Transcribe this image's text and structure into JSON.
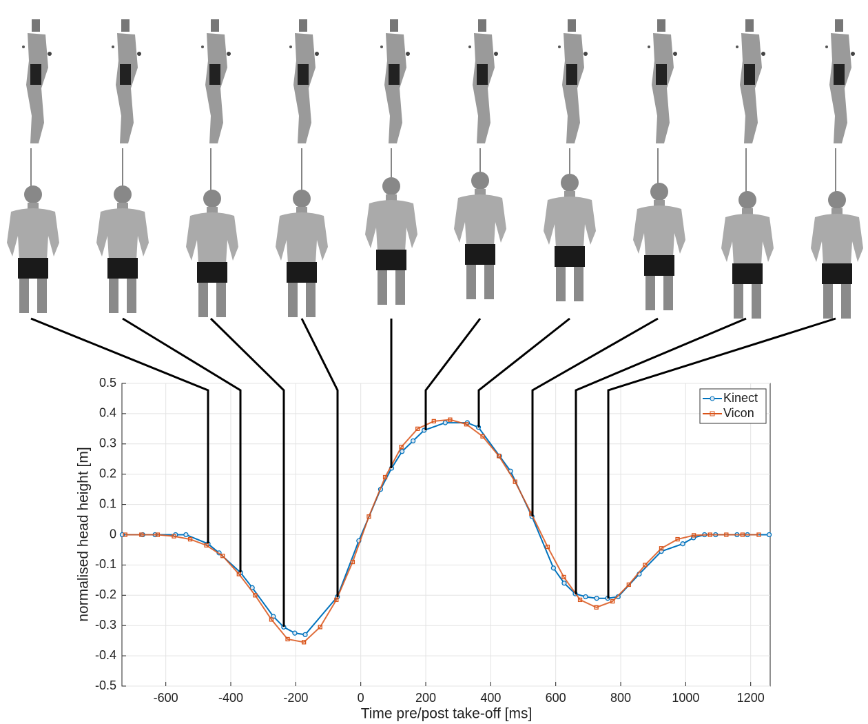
{
  "chart_data": {
    "type": "line",
    "xlabel": "Time pre/post take-off [ms]",
    "ylabel": "normalised head height [m]",
    "xlim": [
      -735,
      1260
    ],
    "ylim": [
      -0.5,
      0.5
    ],
    "xticks": [
      -600,
      -400,
      -200,
      0,
      200,
      400,
      600,
      800,
      1000,
      1200
    ],
    "yticks": [
      -0.5,
      -0.4,
      -0.3,
      -0.2,
      -0.1,
      0,
      0.1,
      0.2,
      0.3,
      0.4,
      0.5
    ],
    "grid": true,
    "legend": "upper right",
    "series": [
      {
        "name": "Kinect",
        "color": "#0072bd",
        "marker": "circle",
        "x": [
          -734,
          -671,
          -633,
          -570,
          -538,
          -470,
          -436,
          -370,
          -334,
          -269,
          -237,
          -203,
          -171,
          -72,
          -6,
          61,
          95,
          127,
          161,
          195,
          260,
          328,
          362,
          427,
          461,
          527,
          593,
          626,
          660,
          692,
          726,
          760,
          792,
          857,
          925,
          991,
          1024,
          1058,
          1092,
          1158,
          1190,
          1257
        ],
        "values": [
          0,
          0,
          0,
          0,
          0,
          -0.03,
          -0.06,
          -0.125,
          -0.175,
          -0.27,
          -0.305,
          -0.325,
          -0.33,
          -0.205,
          -0.02,
          0.15,
          0.22,
          0.275,
          0.31,
          0.345,
          0.37,
          0.37,
          0.355,
          0.26,
          0.21,
          0.06,
          -0.11,
          -0.16,
          -0.195,
          -0.205,
          -0.21,
          -0.21,
          -0.205,
          -0.13,
          -0.055,
          -0.03,
          -0.01,
          0,
          0,
          0,
          0,
          0
        ]
      },
      {
        "name": "Vicon",
        "color": "#d95319",
        "marker": "square",
        "x": [
          -725,
          -675,
          -625,
          -575,
          -525,
          -475,
          -425,
          -375,
          -325,
          -275,
          -225,
          -175,
          -125,
          -75,
          -25,
          25,
          75,
          125,
          175,
          225,
          275,
          325,
          375,
          425,
          475,
          525,
          575,
          625,
          675,
          725,
          775,
          825,
          875,
          925,
          975,
          1025,
          1075,
          1125,
          1175,
          1225
        ],
        "values": [
          0,
          0,
          0,
          -0.005,
          -0.015,
          -0.035,
          -0.07,
          -0.13,
          -0.2,
          -0.28,
          -0.345,
          -0.355,
          -0.305,
          -0.215,
          -0.09,
          0.06,
          0.19,
          0.29,
          0.35,
          0.375,
          0.38,
          0.365,
          0.325,
          0.26,
          0.175,
          0.07,
          -0.04,
          -0.14,
          -0.215,
          -0.24,
          -0.22,
          -0.165,
          -0.1,
          -0.045,
          -0.015,
          -0.002,
          0,
          0,
          0,
          0
        ]
      }
    ]
  }
}
